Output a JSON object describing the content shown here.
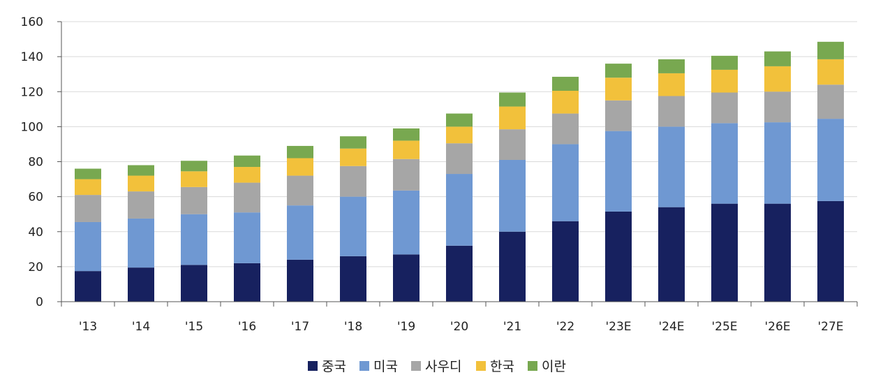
{
  "chart_data": {
    "type": "bar",
    "stacked": true,
    "categories": [
      "'13",
      "'14",
      "'15",
      "'16",
      "'17",
      "'18",
      "'19",
      "'20",
      "'21",
      "'22",
      "'23E",
      "'24E",
      "'25E",
      "'26E",
      "'27E"
    ],
    "series": [
      {
        "name": "중국",
        "color": "#17215f",
        "values": [
          17.5,
          19.5,
          21,
          22,
          24,
          26,
          27,
          32,
          40,
          46,
          51.5,
          54,
          56,
          56,
          57.5
        ]
      },
      {
        "name": "미국",
        "color": "#6f98d2",
        "values": [
          28,
          28,
          29,
          29,
          31,
          34,
          36.5,
          41,
          41,
          44,
          46,
          46,
          46,
          46.5,
          47
        ]
      },
      {
        "name": "사우디",
        "color": "#a6a6a6",
        "values": [
          15.5,
          15.5,
          15.5,
          17,
          17,
          17.5,
          18,
          17.5,
          17.5,
          17.5,
          17.5,
          17.5,
          17.5,
          17.5,
          19.5
        ]
      },
      {
        "name": "한국",
        "color": "#f2c13b",
        "values": [
          9,
          9,
          9,
          9,
          10,
          10,
          10.5,
          9.5,
          13,
          13,
          13,
          13,
          13,
          14.5,
          14.5
        ]
      },
      {
        "name": "이란",
        "color": "#78a850",
        "values": [
          6,
          6,
          6,
          6.5,
          7,
          7,
          7,
          7.5,
          8,
          8,
          8,
          8,
          8,
          8.5,
          10
        ]
      }
    ],
    "ylim": [
      0,
      160
    ],
    "yticks": [
      0,
      20,
      40,
      60,
      80,
      100,
      120,
      140,
      160
    ],
    "grid": true,
    "legend_position": "bottom-center",
    "title": "",
    "xlabel": "",
    "ylabel": ""
  }
}
